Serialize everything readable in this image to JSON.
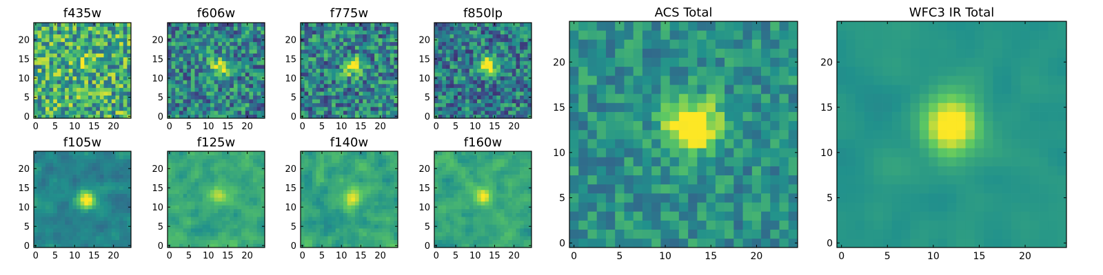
{
  "figure": {
    "type": "image-mosaic",
    "colormap": "viridis",
    "colormap_stops": [
      "#440154",
      "#3b528b",
      "#21918c",
      "#5ec962",
      "#fde725"
    ],
    "background": "#ffffff"
  },
  "chart_data": [
    {
      "type": "heatmap",
      "title": "f435w",
      "xticks": [
        "0",
        "5",
        "10",
        "15",
        "20"
      ],
      "yticks": [
        "0",
        "5",
        "10",
        "15",
        "20"
      ],
      "xlim": [
        0,
        24
      ],
      "ylim": [
        0,
        24
      ],
      "grid": false,
      "peak": [
        13,
        13
      ],
      "peak_level": 0.55,
      "noise": 0.32,
      "bias": 0.62,
      "smooth": 0
    },
    {
      "type": "heatmap",
      "title": "f606w",
      "xticks": [
        "0",
        "5",
        "10",
        "15",
        "20"
      ],
      "yticks": [
        "0",
        "5",
        "10",
        "15",
        "20"
      ],
      "xlim": [
        0,
        24
      ],
      "ylim": [
        0,
        24
      ],
      "grid": false,
      "peak": [
        13,
        13
      ],
      "peak_level": 0.9,
      "noise": 0.28,
      "bias": 0.45,
      "smooth": 0
    },
    {
      "type": "heatmap",
      "title": "f775w",
      "xticks": [
        "0",
        "5",
        "10",
        "15",
        "20"
      ],
      "yticks": [
        "0",
        "5",
        "10",
        "15",
        "20"
      ],
      "xlim": [
        0,
        24
      ],
      "ylim": [
        0,
        24
      ],
      "grid": false,
      "peak": [
        13,
        13
      ],
      "peak_level": 0.9,
      "noise": 0.28,
      "bias": 0.45,
      "smooth": 0
    },
    {
      "type": "heatmap",
      "title": "f850lp",
      "xticks": [
        "0",
        "5",
        "10",
        "15",
        "20"
      ],
      "yticks": [
        "0",
        "5",
        "10",
        "15",
        "20"
      ],
      "xlim": [
        0,
        24
      ],
      "ylim": [
        0,
        24
      ],
      "grid": false,
      "peak": [
        13,
        13
      ],
      "peak_level": 0.95,
      "noise": 0.27,
      "bias": 0.42,
      "smooth": 0
    },
    {
      "type": "heatmap",
      "title": "f105w",
      "xticks": [
        "0",
        "5",
        "10",
        "15",
        "20"
      ],
      "yticks": [
        "0",
        "5",
        "10",
        "15",
        "20"
      ],
      "xlim": [
        0,
        24
      ],
      "ylim": [
        0,
        24
      ],
      "grid": false,
      "peak": [
        13,
        12
      ],
      "peak_level": 0.95,
      "noise": 0.2,
      "bias": 0.45,
      "smooth": 1
    },
    {
      "type": "heatmap",
      "title": "f125w",
      "xticks": [
        "0",
        "5",
        "10",
        "15",
        "20"
      ],
      "yticks": [
        "0",
        "5",
        "10",
        "15",
        "20"
      ],
      "xlim": [
        0,
        24
      ],
      "ylim": [
        0,
        24
      ],
      "grid": false,
      "peak": [
        13,
        13
      ],
      "peak_level": 0.85,
      "noise": 0.22,
      "bias": 0.6,
      "smooth": 1
    },
    {
      "type": "heatmap",
      "title": "f140w",
      "xticks": [
        "0",
        "5",
        "10",
        "15",
        "20"
      ],
      "yticks": [
        "0",
        "5",
        "10",
        "15",
        "20"
      ],
      "xlim": [
        0,
        24
      ],
      "ylim": [
        0,
        24
      ],
      "grid": false,
      "peak": [
        13,
        13
      ],
      "peak_level": 0.85,
      "noise": 0.25,
      "bias": 0.58,
      "smooth": 1
    },
    {
      "type": "heatmap",
      "title": "f160w",
      "xticks": [
        "0",
        "5",
        "10",
        "15",
        "20"
      ],
      "yticks": [
        "0",
        "5",
        "10",
        "15",
        "20"
      ],
      "xlim": [
        0,
        24
      ],
      "ylim": [
        0,
        24
      ],
      "grid": false,
      "peak": [
        12,
        13
      ],
      "peak_level": 0.9,
      "noise": 0.22,
      "bias": 0.6,
      "smooth": 1
    },
    {
      "type": "heatmap",
      "title": "ACS Total",
      "xticks": [
        "0",
        "5",
        "10",
        "15",
        "20"
      ],
      "yticks": [
        "0",
        "5",
        "10",
        "15",
        "20"
      ],
      "xlim": [
        0,
        24
      ],
      "ylim": [
        0,
        24
      ],
      "grid": false,
      "peak": [
        13,
        13
      ],
      "peak_level": 1.0,
      "noise": 0.16,
      "bias": 0.5,
      "smooth": 0
    },
    {
      "type": "heatmap",
      "title": "WFC3 IR Total",
      "xticks": [
        "0",
        "5",
        "10",
        "15",
        "20"
      ],
      "yticks": [
        "0",
        "5",
        "10",
        "15",
        "20"
      ],
      "xlim": [
        0,
        24
      ],
      "ylim": [
        0,
        24
      ],
      "grid": false,
      "peak": [
        12,
        13
      ],
      "peak_level": 1.0,
      "noise": 0.12,
      "bias": 0.52,
      "smooth": 2
    }
  ]
}
